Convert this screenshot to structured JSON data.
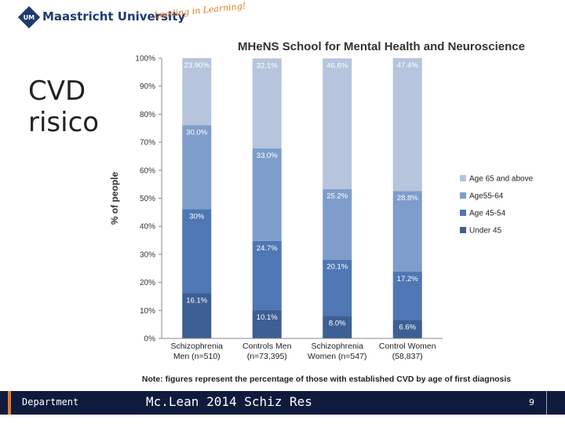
{
  "header": {
    "logo_text": "UM",
    "university": "Maastricht University",
    "tagline": "Leading in Learning!"
  },
  "slide": {
    "title": "CVD\nrisico"
  },
  "chart_data": {
    "type": "bar",
    "stacked": true,
    "title": "MHeNS School for Mental Health and Neuroscience",
    "ylabel": "% of people",
    "ylim": [
      0,
      100
    ],
    "yticks": [
      "0%",
      "10%",
      "20%",
      "30%",
      "40%",
      "50%",
      "60%",
      "70%",
      "80%",
      "90%",
      "100%"
    ],
    "categories": [
      {
        "line1": "Schizophrenia",
        "line2": "Men (n=510)"
      },
      {
        "line1": "Controls Men",
        "line2": "(n=73,395)"
      },
      {
        "line1": "Schizophrenia",
        "line2": "Women (n=547)"
      },
      {
        "line1": "Control Women",
        "line2": "(58,837)"
      }
    ],
    "series": [
      {
        "name": "Under 45",
        "color": "#3d5f93",
        "values": [
          16.1,
          10.1,
          8.0,
          6.6
        ],
        "labels": [
          "16.1%",
          "10.1%",
          "8.0%",
          "6.6%"
        ]
      },
      {
        "name": "Age 45-54",
        "color": "#4f77b3",
        "values": [
          30.0,
          24.7,
          20.1,
          17.2
        ],
        "labels": [
          "30%",
          "24.7%",
          "20.1%",
          "17.2%"
        ]
      },
      {
        "name": "Age55-64",
        "color": "#7f9dcb",
        "values": [
          30.0,
          33.0,
          25.2,
          28.8
        ],
        "labels": [
          "30.0%",
          "33.0%",
          "25.2%",
          "28.8%"
        ]
      },
      {
        "name": "Age 65 and above",
        "color": "#b6c4de",
        "values": [
          23.9,
          32.1,
          46.6,
          47.4
        ],
        "labels": [
          "23.90%",
          "32.1%",
          "46.6%",
          "47.4%"
        ]
      }
    ],
    "legend_order": [
      "Age 65 and above",
      "Age55-64",
      "Age 45-54",
      "Under 45"
    ],
    "legend_position": "right",
    "note": "Note: figures represent the percentage of those with established CVD by age of first diagnosis"
  },
  "footer": {
    "department": "Department",
    "citation": "Mc.Lean 2014 Schiz Res",
    "page": "9"
  }
}
